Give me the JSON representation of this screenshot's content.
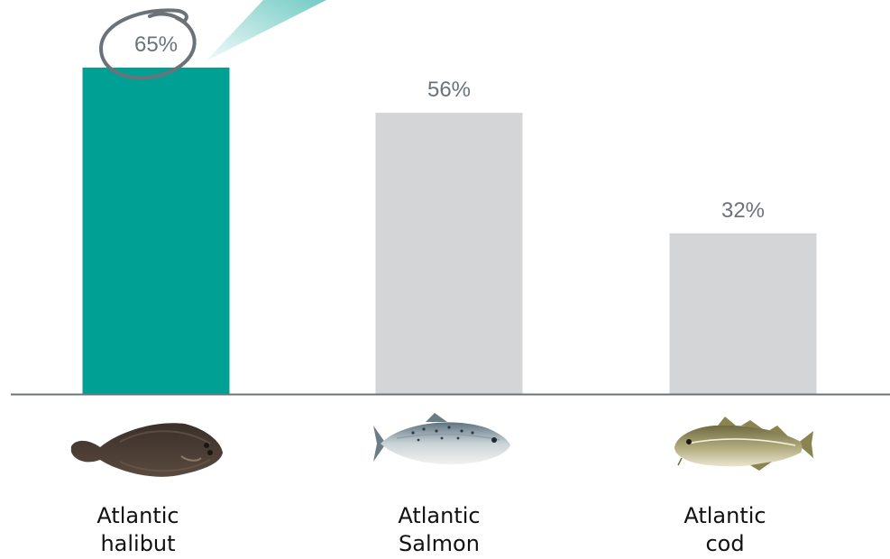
{
  "colors": {
    "highlight": "#00a194",
    "bar": "#d3d5d6",
    "value_text": "#6b7378",
    "axis": "#6b7378",
    "circle": "#6b7378"
  },
  "chart_data": {
    "type": "bar",
    "categories": [
      [
        "Atlantic",
        "halibut"
      ],
      [
        "Atlantic",
        "Salmon"
      ],
      [
        "Atlantic",
        "cod"
      ]
    ],
    "values": [
      65,
      56,
      32
    ],
    "value_labels": [
      "65%",
      "56%",
      "32%"
    ],
    "icons": [
      "halibut-fish-icon",
      "salmon-fish-icon",
      "cod-fish-icon"
    ],
    "highlighted_index": 0,
    "ylim": [
      0,
      65
    ],
    "grid": false,
    "legend": "none"
  }
}
